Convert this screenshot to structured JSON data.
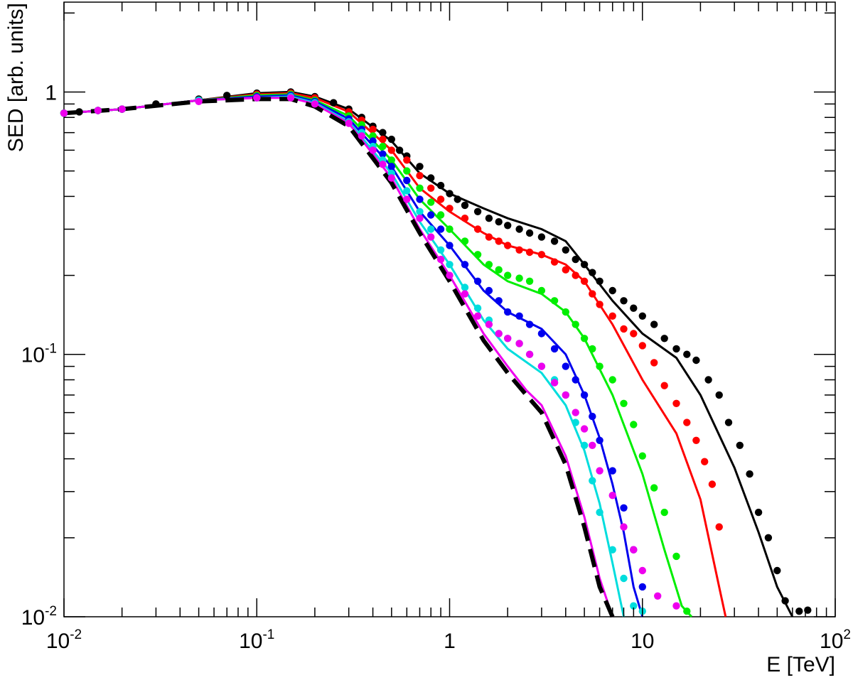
{
  "chart_data": {
    "type": "line",
    "title": "",
    "xlabel": "E [TeV]",
    "ylabel": "SED [arb. units]",
    "x_scale": "log",
    "y_scale": "log",
    "xlim": [
      0.01,
      100
    ],
    "ylim": [
      0.01,
      2.2
    ],
    "grid": false,
    "legend": "none",
    "x_ticks": [
      {
        "value": 0.01,
        "base": "10",
        "exp": "-2"
      },
      {
        "value": 0.1,
        "base": "10",
        "exp": "-1"
      },
      {
        "value": 1,
        "base": "1",
        "exp": ""
      },
      {
        "value": 10,
        "base": "10",
        "exp": ""
      },
      {
        "value": 100,
        "base": "10",
        "exp": "2"
      }
    ],
    "y_ticks": [
      {
        "value": 0.01,
        "base": "10",
        "exp": "-2"
      },
      {
        "value": 0.1,
        "base": "10",
        "exp": "-1"
      },
      {
        "value": 1,
        "base": "1",
        "exp": ""
      }
    ],
    "series": [
      {
        "color": "#000000",
        "style": "solid",
        "points_x": [
          0.01,
          0.02,
          0.05,
          0.1,
          0.15,
          0.2,
          0.3,
          0.5,
          0.7,
          1.0,
          1.5,
          2.0,
          3.0,
          4.0,
          5.0,
          7.0,
          10.0,
          15.0,
          20.0,
          30.0,
          40.0,
          50.0,
          60.0
        ],
        "points_y": [
          0.83,
          0.86,
          0.93,
          0.99,
          1.0,
          0.96,
          0.86,
          0.65,
          0.49,
          0.41,
          0.36,
          0.33,
          0.3,
          0.27,
          0.22,
          0.16,
          0.12,
          0.097,
          0.07,
          0.037,
          0.021,
          0.013,
          0.009
        ]
      },
      {
        "color": "#ff0000",
        "style": "solid",
        "points_x": [
          0.01,
          0.02,
          0.05,
          0.1,
          0.15,
          0.2,
          0.3,
          0.5,
          0.7,
          1.0,
          1.5,
          2.0,
          3.0,
          4.0,
          5.0,
          7.0,
          10.0,
          15.0,
          20.0,
          25.0,
          27.0
        ],
        "points_y": [
          0.83,
          0.86,
          0.93,
          0.98,
          0.99,
          0.95,
          0.84,
          0.6,
          0.43,
          0.35,
          0.29,
          0.26,
          0.24,
          0.22,
          0.19,
          0.13,
          0.08,
          0.05,
          0.028,
          0.013,
          0.009
        ]
      },
      {
        "color": "#00ee00",
        "style": "solid",
        "points_x": [
          0.01,
          0.02,
          0.05,
          0.1,
          0.15,
          0.2,
          0.3,
          0.5,
          0.7,
          1.0,
          1.5,
          2.0,
          3.0,
          4.0,
          5.0,
          7.0,
          10.0,
          13.0,
          16.0,
          18.0
        ],
        "points_y": [
          0.83,
          0.86,
          0.93,
          0.97,
          0.98,
          0.93,
          0.81,
          0.55,
          0.39,
          0.3,
          0.22,
          0.19,
          0.17,
          0.145,
          0.115,
          0.07,
          0.035,
          0.018,
          0.011,
          0.008
        ]
      },
      {
        "color": "#0000ee",
        "style": "solid",
        "points_x": [
          0.01,
          0.02,
          0.05,
          0.1,
          0.15,
          0.2,
          0.3,
          0.5,
          0.7,
          1.0,
          1.5,
          2.0,
          3.0,
          4.0,
          5.0,
          6.0,
          7.0,
          8.0,
          9.0,
          10.0
        ],
        "points_y": [
          0.83,
          0.86,
          0.93,
          0.96,
          0.97,
          0.92,
          0.79,
          0.52,
          0.35,
          0.26,
          0.175,
          0.145,
          0.125,
          0.1,
          0.07,
          0.048,
          0.032,
          0.021,
          0.013,
          0.009
        ]
      },
      {
        "color": "#00dddd",
        "style": "solid",
        "points_x": [
          0.01,
          0.02,
          0.05,
          0.1,
          0.15,
          0.2,
          0.3,
          0.5,
          0.7,
          1.0,
          1.5,
          2.0,
          3.0,
          4.0,
          5.0,
          6.0,
          7.0,
          8.0
        ],
        "points_y": [
          0.83,
          0.86,
          0.93,
          0.95,
          0.96,
          0.91,
          0.77,
          0.49,
          0.32,
          0.22,
          0.135,
          0.105,
          0.085,
          0.064,
          0.043,
          0.027,
          0.016,
          0.009
        ]
      },
      {
        "color": "#ee00ee",
        "style": "solid",
        "points_x": [
          0.01,
          0.02,
          0.05,
          0.1,
          0.15,
          0.2,
          0.3,
          0.5,
          0.7,
          1.0,
          1.5,
          2.0,
          2.5,
          3.0,
          4.0,
          5.0,
          6.0,
          7.0
        ],
        "points_y": [
          0.83,
          0.86,
          0.93,
          0.95,
          0.95,
          0.9,
          0.76,
          0.47,
          0.3,
          0.2,
          0.12,
          0.09,
          0.073,
          0.064,
          0.041,
          0.024,
          0.014,
          0.009
        ]
      },
      {
        "color": "#000000",
        "style": "dashed",
        "points_x": [
          0.01,
          0.02,
          0.05,
          0.1,
          0.15,
          0.2,
          0.3,
          0.5,
          0.7,
          1.0,
          1.5,
          2.0,
          2.5,
          3.0,
          4.0,
          5.0,
          6.0,
          7.0
        ],
        "points_y": [
          0.83,
          0.86,
          0.92,
          0.94,
          0.94,
          0.88,
          0.74,
          0.45,
          0.29,
          0.19,
          0.113,
          0.085,
          0.07,
          0.06,
          0.038,
          0.022,
          0.013,
          0.008
        ]
      }
    ],
    "point_series": [
      {
        "color": "#000000",
        "x": [
          0.01,
          0.012,
          0.015,
          0.02,
          0.03,
          0.05,
          0.07,
          0.1,
          0.15,
          0.2,
          0.25,
          0.3,
          0.35,
          0.4,
          0.45,
          0.5,
          0.55,
          0.6,
          0.7,
          0.8,
          0.9,
          1.0,
          1.1,
          1.2,
          1.4,
          1.6,
          1.8,
          2.0,
          2.3,
          2.6,
          3.0,
          3.5,
          4.0,
          4.5,
          5.0,
          5.5,
          6.0,
          7.0,
          8.0,
          9.0,
          10.0,
          11.5,
          13.0,
          15.0,
          17.0,
          19.0,
          22.0,
          25.0,
          28.0,
          32.0,
          36.0,
          40.0,
          45.0,
          50.0,
          55.0,
          65.0,
          72.0
        ],
        "y": [
          0.83,
          0.84,
          0.85,
          0.86,
          0.9,
          0.94,
          0.97,
          0.99,
          1.0,
          0.96,
          0.91,
          0.86,
          0.8,
          0.74,
          0.7,
          0.66,
          0.6,
          0.57,
          0.52,
          0.47,
          0.44,
          0.41,
          0.39,
          0.37,
          0.35,
          0.33,
          0.32,
          0.31,
          0.3,
          0.29,
          0.28,
          0.27,
          0.25,
          0.23,
          0.22,
          0.205,
          0.19,
          0.175,
          0.16,
          0.15,
          0.14,
          0.13,
          0.115,
          0.105,
          0.1,
          0.095,
          0.08,
          0.07,
          0.055,
          0.045,
          0.035,
          0.025,
          0.02,
          0.015,
          0.0115,
          0.0105,
          0.0106
        ]
      },
      {
        "color": "#ff0000",
        "x": [
          0.01,
          0.015,
          0.02,
          0.05,
          0.1,
          0.15,
          0.2,
          0.3,
          0.35,
          0.4,
          0.45,
          0.5,
          0.6,
          0.7,
          0.8,
          0.9,
          1.0,
          1.2,
          1.4,
          1.6,
          1.8,
          2.0,
          2.3,
          2.6,
          3.0,
          3.5,
          4.0,
          4.5,
          5.0,
          5.5,
          6.0,
          7.0,
          8.0,
          9.0,
          10.0,
          11.5,
          13.0,
          15.0,
          17.0,
          19.0,
          21.0,
          23.0,
          25.0
        ],
        "y": [
          0.83,
          0.85,
          0.86,
          0.93,
          0.98,
          0.99,
          0.95,
          0.84,
          0.78,
          0.72,
          0.66,
          0.6,
          0.55,
          0.48,
          0.43,
          0.39,
          0.36,
          0.33,
          0.3,
          0.28,
          0.27,
          0.26,
          0.25,
          0.245,
          0.24,
          0.225,
          0.21,
          0.2,
          0.19,
          0.17,
          0.155,
          0.14,
          0.125,
          0.12,
          0.108,
          0.093,
          0.076,
          0.065,
          0.055,
          0.047,
          0.039,
          0.032,
          0.022
        ]
      },
      {
        "color": "#00ee00",
        "x": [
          0.01,
          0.015,
          0.02,
          0.05,
          0.1,
          0.15,
          0.2,
          0.3,
          0.35,
          0.4,
          0.45,
          0.5,
          0.6,
          0.7,
          0.8,
          0.9,
          1.0,
          1.2,
          1.4,
          1.6,
          1.8,
          2.0,
          2.3,
          2.6,
          3.0,
          3.5,
          4.0,
          4.5,
          5.0,
          5.5,
          6.0,
          7.0,
          8.0,
          9.0,
          10.0,
          11.5,
          13.0,
          15.0,
          17.0
        ],
        "y": [
          0.83,
          0.85,
          0.86,
          0.93,
          0.97,
          0.98,
          0.93,
          0.81,
          0.75,
          0.68,
          0.62,
          0.55,
          0.5,
          0.43,
          0.38,
          0.34,
          0.3,
          0.27,
          0.24,
          0.22,
          0.21,
          0.2,
          0.195,
          0.19,
          0.175,
          0.16,
          0.145,
          0.13,
          0.115,
          0.105,
          0.09,
          0.08,
          0.065,
          0.054,
          0.041,
          0.031,
          0.025,
          0.017,
          0.0105
        ]
      },
      {
        "color": "#0000ee",
        "x": [
          0.01,
          0.015,
          0.02,
          0.05,
          0.1,
          0.15,
          0.2,
          0.3,
          0.35,
          0.4,
          0.45,
          0.5,
          0.6,
          0.7,
          0.8,
          0.9,
          1.0,
          1.2,
          1.4,
          1.6,
          1.8,
          2.0,
          2.3,
          2.6,
          3.0,
          3.5,
          4.0,
          4.5,
          5.0,
          5.5,
          6.0,
          7.0,
          8.0,
          9.0,
          10.0
        ],
        "y": [
          0.83,
          0.85,
          0.86,
          0.93,
          0.96,
          0.97,
          0.92,
          0.79,
          0.72,
          0.65,
          0.58,
          0.52,
          0.46,
          0.39,
          0.34,
          0.3,
          0.26,
          0.22,
          0.19,
          0.175,
          0.16,
          0.145,
          0.14,
          0.13,
          0.12,
          0.105,
          0.09,
          0.08,
          0.07,
          0.058,
          0.047,
          0.036,
          0.026,
          0.018,
          0.013
        ]
      },
      {
        "color": "#00dddd",
        "x": [
          0.01,
          0.015,
          0.02,
          0.05,
          0.1,
          0.15,
          0.2,
          0.3,
          0.35,
          0.4,
          0.45,
          0.5,
          0.6,
          0.7,
          0.8,
          0.9,
          1.0,
          1.2,
          1.4,
          1.6,
          1.8,
          2.0,
          2.3,
          2.6,
          3.0,
          3.5,
          4.0,
          4.5,
          5.0,
          5.5,
          6.0,
          7.0,
          8.0,
          9.0,
          10.0
        ],
        "y": [
          0.83,
          0.85,
          0.86,
          0.93,
          0.95,
          0.96,
          0.91,
          0.77,
          0.7,
          0.62,
          0.55,
          0.49,
          0.42,
          0.35,
          0.3,
          0.25,
          0.22,
          0.18,
          0.15,
          0.135,
          0.12,
          0.115,
          0.11,
          0.1,
          0.09,
          0.08,
          0.07,
          0.055,
          0.045,
          0.033,
          0.025,
          0.018,
          0.014,
          0.011,
          0.0105
        ]
      },
      {
        "color": "#ee00ee",
        "x": [
          0.01,
          0.015,
          0.02,
          0.05,
          0.1,
          0.15,
          0.2,
          0.3,
          0.35,
          0.4,
          0.45,
          0.5,
          0.6,
          0.7,
          0.8,
          0.9,
          1.0,
          1.2,
          1.4,
          1.6,
          1.8,
          2.0,
          2.3,
          2.6,
          3.0,
          3.5,
          4.0,
          4.5,
          5.0,
          5.5,
          6.0,
          7.0,
          8.0,
          9.0,
          10.0,
          12.0,
          15.0
        ],
        "y": [
          0.83,
          0.85,
          0.86,
          0.92,
          0.95,
          0.95,
          0.9,
          0.76,
          0.68,
          0.6,
          0.53,
          0.47,
          0.39,
          0.33,
          0.28,
          0.23,
          0.2,
          0.17,
          0.14,
          0.13,
          0.12,
          0.115,
          0.11,
          0.1,
          0.09,
          0.078,
          0.07,
          0.06,
          0.052,
          0.045,
          0.036,
          0.029,
          0.022,
          0.018,
          0.015,
          0.012,
          0.011
        ]
      }
    ]
  }
}
